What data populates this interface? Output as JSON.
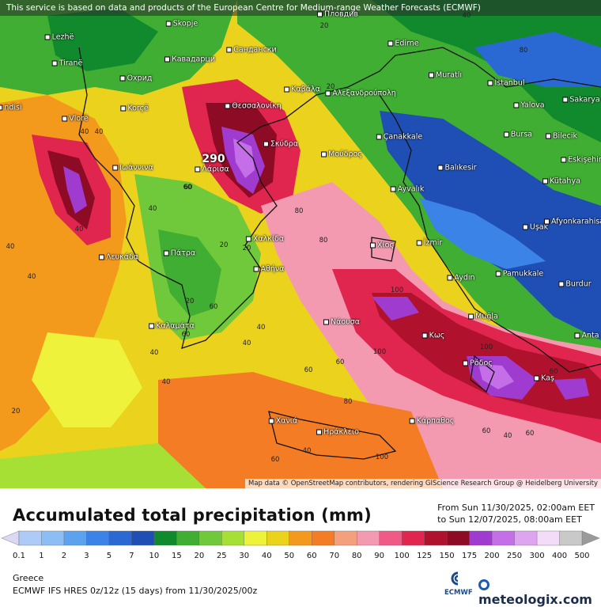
{
  "header": {
    "notice": "This service is based on data and products of the European Centre for Medium-range Weather Forecasts (ECMWF)"
  },
  "map": {
    "attribution": "Map data © OpenStreetMap contributors, rendering GIScience Research Group @ Heidelberg University",
    "max_value": "290",
    "cities": [
      {
        "name": "Skopje"
      },
      {
        "name": "Пловдив"
      },
      {
        "name": "Lezhë"
      },
      {
        "name": "Кавадарци"
      },
      {
        "name": "Сандански"
      },
      {
        "name": "Edirne"
      },
      {
        "name": "Tiranë"
      },
      {
        "name": "Охрид"
      },
      {
        "name": "Muratlı"
      },
      {
        "name": "İstanbul"
      },
      {
        "name": "Καβάλα"
      },
      {
        "name": "Αλεξανδρούπολη"
      },
      {
        "name": "Θεσσαλονίκη"
      },
      {
        "name": "Korçë"
      },
      {
        "name": "Yalova"
      },
      {
        "name": "Sakarya"
      },
      {
        "name": "Vlorë"
      },
      {
        "name": "Çanakkale"
      },
      {
        "name": "Bursa"
      },
      {
        "name": "Bilecik"
      },
      {
        "name": "ndisi"
      },
      {
        "name": "Σκύδρα"
      },
      {
        "name": "Μούδρος"
      },
      {
        "name": "Balıkesir"
      },
      {
        "name": "Eskişehir"
      },
      {
        "name": "Λάρισα"
      },
      {
        "name": "Ιωάννινα"
      },
      {
        "name": "Kütahya"
      },
      {
        "name": "Ayvalık"
      },
      {
        "name": "Uşak"
      },
      {
        "name": "Afyonkarahisar"
      },
      {
        "name": "Χαλκίδα"
      },
      {
        "name": "Λευκάδα"
      },
      {
        "name": "Πάτρα"
      },
      {
        "name": "Χίος"
      },
      {
        "name": "İzmir"
      },
      {
        "name": "Αθήνα"
      },
      {
        "name": "Aydın"
      },
      {
        "name": "Pamukkale"
      },
      {
        "name": "Burdur"
      },
      {
        "name": "Καλαμάτα"
      },
      {
        "name": "Νάουσα"
      },
      {
        "name": "Muğla"
      },
      {
        "name": "Κως"
      },
      {
        "name": "Ρόδος"
      },
      {
        "name": "Anta"
      },
      {
        "name": "Kaş"
      },
      {
        "name": "Χανιά"
      },
      {
        "name": "Ηράκλειο"
      },
      {
        "name": "Κάρπαθος"
      }
    ],
    "contour_labels": [
      "20",
      "40",
      "40",
      "60",
      "80",
      "80",
      "40",
      "20",
      "40",
      "60",
      "60",
      "40",
      "20",
      "40",
      "60",
      "60",
      "100",
      "100",
      "100",
      "40",
      "60",
      "60",
      "60",
      "40",
      "20",
      "40",
      "40",
      "60",
      "100",
      "80",
      "40",
      "40",
      "20",
      "60",
      "20",
      "40",
      "80"
    ]
  },
  "legend": {
    "title": "Accumulated total precipitation (mm)",
    "period_from": "From Sun 11/30/2025, 02:00am EET",
    "period_to": "to Sun 12/07/2025, 08:00am EET",
    "ticks": [
      "0.1",
      "1",
      "2",
      "3",
      "5",
      "7",
      "10",
      "15",
      "20",
      "25",
      "30",
      "40",
      "50",
      "60",
      "70",
      "80",
      "90",
      "100",
      "125",
      "150",
      "175",
      "200",
      "250",
      "300",
      "400",
      "500"
    ],
    "colors": [
      "#dad8f2",
      "#aecbf7",
      "#8cbef5",
      "#5da2ef",
      "#3b83e6",
      "#2a69d4",
      "#1f4fb4",
      "#118a2e",
      "#3fae32",
      "#70c93b",
      "#a7e034",
      "#eef23a",
      "#ebd21d",
      "#f39a1d",
      "#f47c24",
      "#f5a07c",
      "#f39ab0",
      "#ef5a86",
      "#e0254e",
      "#b0122d",
      "#8e0b25",
      "#a03bd0",
      "#c46ee8",
      "#dea4ef",
      "#f3dcf7",
      "#c9c9c9",
      "#9a9a9a"
    ],
    "region": "Greece",
    "model": "ECMWF IFS HRES 0z/12z (15 days) from 11/30/2025/00z"
  },
  "branding": {
    "ecmwf": "ECMWF",
    "site": "meteologix.com"
  }
}
